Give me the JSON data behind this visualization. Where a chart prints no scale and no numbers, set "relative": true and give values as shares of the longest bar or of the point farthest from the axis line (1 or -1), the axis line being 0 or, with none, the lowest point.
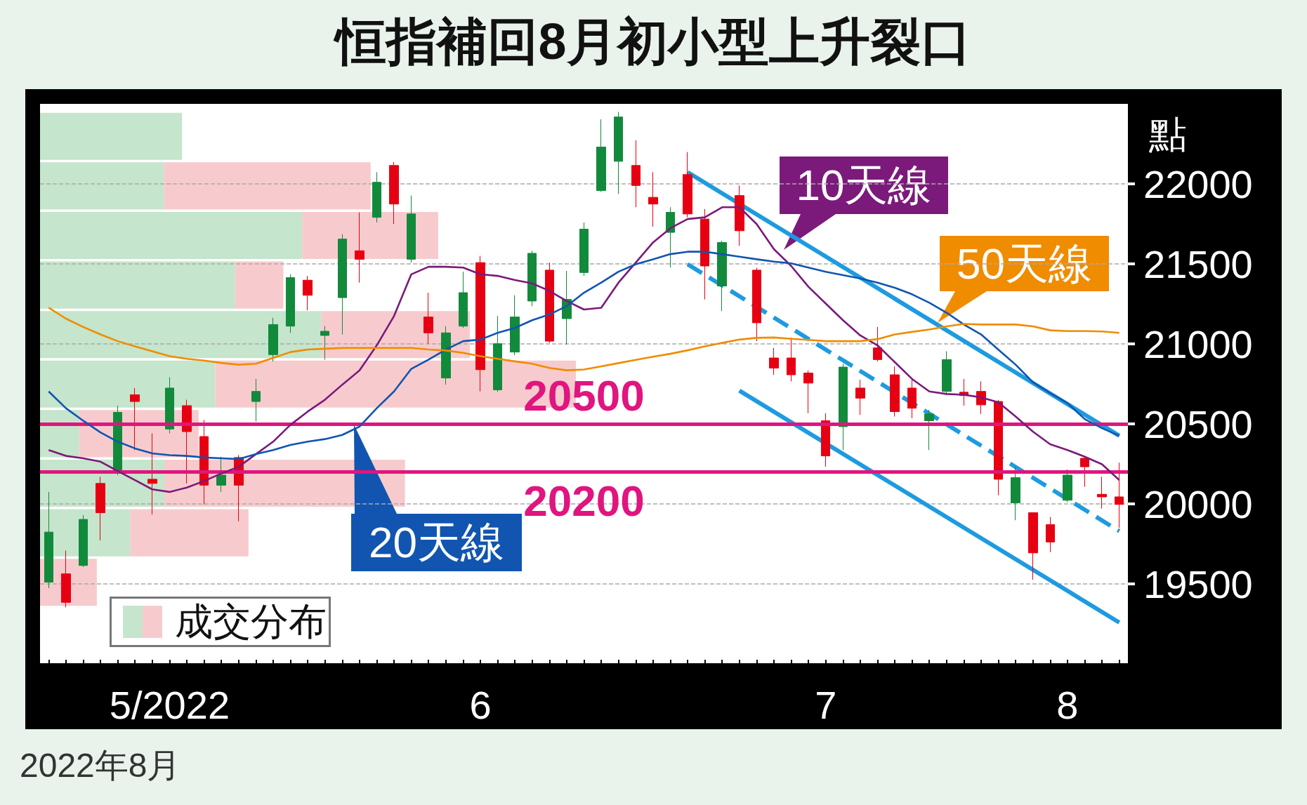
{
  "chart_data": [
    {
      "type": "candlestick",
      "title": "恒指補回8月初小型上升裂口",
      "ylabel": "點",
      "annotations": [
        "2022年8月"
      ],
      "categories": [
        null,
        null,
        null,
        null,
        null,
        null,
        null,
        "5/2022",
        null,
        null,
        null,
        null,
        null,
        null,
        null,
        null,
        null,
        null,
        null,
        null,
        null,
        null,
        null,
        null,
        null,
        "6",
        null,
        null,
        null,
        null,
        null,
        null,
        null,
        null,
        null,
        null,
        null,
        null,
        null,
        null,
        null,
        null,
        null,
        null,
        null,
        "7",
        null,
        null,
        null,
        null,
        null,
        null,
        null,
        null,
        null,
        null,
        null,
        null,
        null,
        "8",
        null,
        null,
        null
      ],
      "ohlc": [
        [
          19511,
          20075,
          19474,
          19824
        ],
        [
          19563,
          19709,
          19354,
          19385
        ],
        [
          19615,
          19929,
          19605,
          19903
        ],
        [
          20128,
          20170,
          19772,
          19945
        ],
        [
          20196,
          20614,
          20180,
          20572
        ],
        [
          20682,
          20724,
          20337,
          20640
        ],
        [
          20154,
          20441,
          19934,
          20128
        ],
        [
          20468,
          20792,
          20441,
          20724
        ],
        [
          20614,
          20651,
          20128,
          20452
        ],
        [
          20421,
          20525,
          19997,
          20117
        ],
        [
          20117,
          20295,
          20075,
          20180
        ],
        [
          20290,
          20305,
          19892,
          20117
        ],
        [
          20640,
          20781,
          20515,
          20703
        ],
        [
          20933,
          21163,
          20890,
          21121
        ],
        [
          21111,
          21435,
          21069,
          21414
        ],
        [
          21398,
          21425,
          21210,
          21304
        ],
        [
          21053,
          21111,
          20902,
          21079
        ],
        [
          21289,
          21686,
          21059,
          21655
        ],
        [
          21582,
          21822,
          21383,
          21529
        ],
        [
          21791,
          22073,
          21759,
          22010
        ],
        [
          22115,
          22136,
          21749,
          21874
        ],
        [
          21529,
          21927,
          21508,
          21812
        ],
        [
          21168,
          21320,
          21001,
          21069
        ],
        [
          20787,
          21111,
          20745,
          21069
        ],
        [
          21111,
          21451,
          21100,
          21320
        ],
        [
          21508,
          21550,
          20703,
          20839
        ],
        [
          20713,
          21174,
          20700,
          21001
        ],
        [
          20949,
          21304,
          20930,
          21168
        ],
        [
          21268,
          21582,
          21236,
          21566
        ],
        [
          21461,
          21508,
          21006,
          21017
        ],
        [
          21158,
          21456,
          20996,
          21278
        ],
        [
          21446,
          21759,
          21425,
          21717
        ],
        [
          21958,
          22403,
          21950,
          22230
        ],
        [
          22141,
          22450,
          21937,
          22418
        ],
        [
          22115,
          22272,
          21854,
          21990
        ],
        [
          21916,
          22073,
          21733,
          21874
        ],
        [
          21697,
          21854,
          21477,
          21822
        ],
        [
          22058,
          22199,
          21791,
          21812
        ],
        [
          21780,
          21843,
          21278,
          21487
        ],
        [
          21362,
          21645,
          21205,
          21634
        ],
        [
          21927,
          21990,
          21613,
          21707
        ],
        [
          21461,
          21476,
          21017,
          21132
        ],
        [
          20912,
          20975,
          20807,
          20849
        ],
        [
          20912,
          21038,
          20766,
          20807
        ],
        [
          20818,
          20834,
          20567,
          20755
        ],
        [
          20520,
          20567,
          20232,
          20300
        ],
        [
          20483,
          20876,
          20337,
          20855
        ],
        [
          20724,
          20776,
          20556,
          20661
        ],
        [
          20975,
          21106,
          20890,
          20902
        ],
        [
          20807,
          20860,
          20546,
          20577
        ],
        [
          20724,
          20781,
          20535,
          20598
        ],
        [
          20520,
          20588,
          20337,
          20562
        ],
        [
          20703,
          20954,
          20682,
          20902
        ],
        [
          20698,
          20781,
          20614,
          20677
        ],
        [
          20703,
          20766,
          20562,
          20619
        ],
        [
          20640,
          20650,
          20054,
          20154
        ],
        [
          20007,
          20232,
          19898,
          20164
        ],
        [
          19945,
          19945,
          19526,
          19694
        ],
        [
          19871,
          19918,
          19699,
          19762
        ],
        [
          20023,
          20216,
          20012,
          20180
        ],
        [
          20285,
          20295,
          20107,
          20232
        ],
        [
          20060,
          20170,
          19971,
          20044
        ],
        [
          20044,
          20258,
          19851,
          19997
        ]
      ],
      "series": [
        {
          "name": "10天線",
          "type": "line",
          "color": "#7b1a7b",
          "values": [
            20337,
            20300,
            20285,
            20264,
            20206,
            20149,
            20091,
            20075,
            20102,
            20143,
            20190,
            20232,
            20311,
            20389,
            20494,
            20577,
            20651,
            20745,
            20834,
            20991,
            21174,
            21435,
            21482,
            21482,
            21477,
            21435,
            21425,
            21399,
            21378,
            21331,
            21268,
            21215,
            21226,
            21383,
            21508,
            21634,
            21723,
            21780,
            21791,
            21854,
            21854,
            21749,
            21592,
            21487,
            21357,
            21252,
            21148,
            21053,
            20991,
            20886,
            20781,
            20703,
            20687,
            20682,
            20666,
            20635,
            20546,
            20452,
            20373,
            20337,
            20295,
            20248,
            20149
          ]
        },
        {
          "name": "20天線",
          "type": "line",
          "color": "#1155b0",
          "values": [
            20703,
            20598,
            20520,
            20447,
            20389,
            20347,
            20316,
            20305,
            20300,
            20290,
            20285,
            20280,
            20311,
            20337,
            20368,
            20389,
            20405,
            20431,
            20483,
            20598,
            20703,
            20844,
            20902,
            20964,
            21017,
            21027,
            21069,
            21100,
            21148,
            21184,
            21236,
            21320,
            21383,
            21451,
            21498,
            21529,
            21561,
            21576,
            21576,
            21561,
            21545,
            21529,
            21514,
            21503,
            21477,
            21451,
            21430,
            21409,
            21383,
            21351,
            21310,
            21257,
            21195,
            21121,
            21059,
            20964,
            20870,
            20760,
            20692,
            20630,
            20530,
            20473,
            20426
          ]
        },
        {
          "name": "50天線",
          "type": "line",
          "color": "#f08c00",
          "values": [
            21226,
            21158,
            21106,
            21059,
            21017,
            20985,
            20954,
            20923,
            20907,
            20896,
            20881,
            20870,
            20876,
            20912,
            20949,
            20965,
            20970,
            20975,
            20975,
            20975,
            20975,
            20975,
            20965,
            20959,
            20944,
            20923,
            20907,
            20891,
            20876,
            20850,
            20835,
            20840,
            20860,
            20880,
            20900,
            20920,
            20938,
            20960,
            20985,
            21006,
            21027,
            21038,
            21040,
            21032,
            21025,
            21017,
            21017,
            21017,
            21030,
            21059,
            21075,
            21090,
            21110,
            21125,
            21121,
            21121,
            21121,
            21110,
            21085,
            21080,
            21080,
            21078,
            21069
          ]
        },
        {
          "type": "line",
          "color": "#1e9be0",
          "values": [
            null,
            null,
            null,
            null,
            null,
            null,
            null,
            null,
            null,
            null,
            null,
            null,
            null,
            null,
            null,
            null,
            null,
            null,
            null,
            null,
            null,
            null,
            null,
            null,
            null,
            null,
            null,
            null,
            null,
            null,
            null,
            null,
            null,
            null,
            null,
            null,
            null,
            22073,
            null,
            null,
            null,
            null,
            null,
            null,
            null,
            null,
            null,
            null,
            null,
            null,
            null,
            null,
            null,
            null,
            null,
            null,
            null,
            null,
            null,
            null,
            null,
            null,
            20426
          ]
        },
        {
          "type": "line",
          "color": "#1e9be0",
          "values": [
            null,
            null,
            null,
            null,
            null,
            null,
            null,
            null,
            null,
            null,
            null,
            null,
            null,
            null,
            null,
            null,
            null,
            null,
            null,
            null,
            null,
            null,
            null,
            null,
            null,
            null,
            null,
            null,
            null,
            null,
            null,
            null,
            null,
            null,
            null,
            null,
            null,
            null,
            null,
            null,
            20708,
            null,
            null,
            null,
            null,
            null,
            null,
            null,
            null,
            null,
            null,
            null,
            null,
            null,
            null,
            null,
            null,
            null,
            null,
            null,
            null,
            null,
            19259
          ]
        },
        {
          "type": "line",
          "color": "#1e9be0",
          "line_style": "dashed",
          "values": [
            null,
            null,
            null,
            null,
            null,
            null,
            null,
            null,
            null,
            null,
            null,
            null,
            null,
            null,
            null,
            null,
            null,
            null,
            null,
            null,
            null,
            null,
            null,
            null,
            null,
            null,
            null,
            null,
            null,
            null,
            null,
            null,
            null,
            null,
            null,
            null,
            null,
            21498,
            null,
            null,
            null,
            null,
            null,
            null,
            null,
            null,
            null,
            null,
            null,
            null,
            null,
            null,
            null,
            null,
            null,
            null,
            null,
            null,
            null,
            null,
            null,
            null,
            19830
          ]
        }
      ],
      "ref_lines": [
        {
          "axis": "y",
          "value": 20500,
          "label": "20500",
          "color": "#e0157f"
        },
        {
          "axis": "y",
          "value": 20200,
          "label": "20200",
          "color": "#e0157f"
        }
      ],
      "ylim": [
        19000,
        22500
      ],
      "yticks": [
        19500,
        20000,
        20500,
        21000,
        21500,
        22000
      ],
      "grid": "y",
      "marker": "none"
    },
    {
      "type": "bar",
      "orientation": "horizontal",
      "stacked": true,
      "relative": true,
      "legend_title": "成交分布",
      "categories": [
        null,
        null,
        null,
        null,
        null,
        null,
        null,
        null,
        null,
        null
      ],
      "series": [
        {
          "color": "#c5e5cc",
          "values": [
            0.265,
            0.231,
            0.489,
            0.364,
            0.525,
            0.327,
            0.073,
            0.232,
            0.168,
            0
          ]
        },
        {
          "color": "#f7cbcd",
          "values": [
            0,
            0.386,
            0.254,
            0.09,
            0.277,
            0.673,
            0.223,
            0.449,
            0.221,
            0.106
          ]
        }
      ]
    }
  ]
}
